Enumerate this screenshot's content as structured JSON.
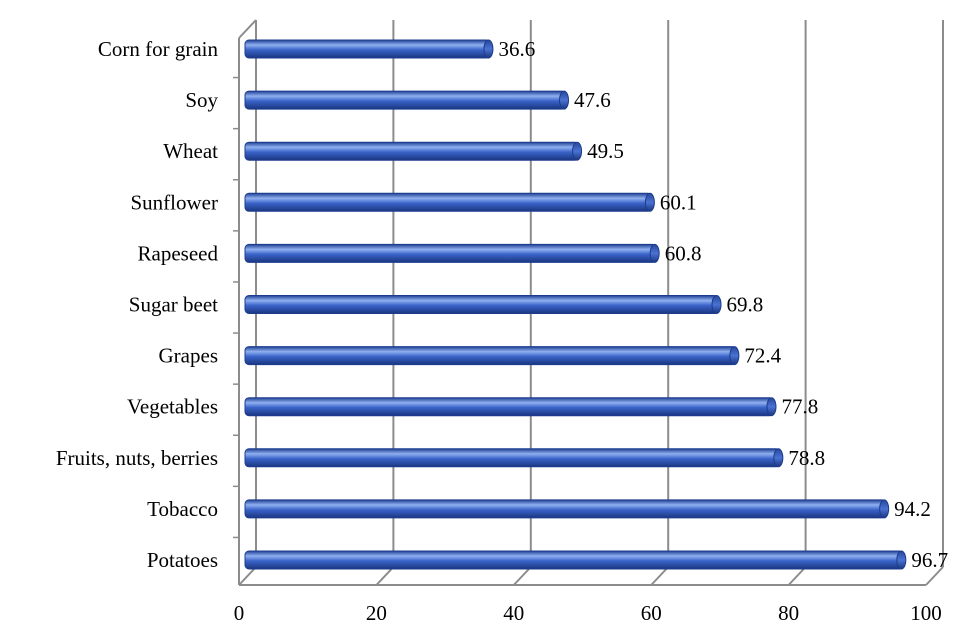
{
  "chart_data": {
    "type": "bar",
    "orientation": "horizontal",
    "categories": [
      "Corn for grain",
      "Soy",
      "Wheat",
      "Sunflower",
      "Rapeseed",
      "Sugar beet",
      "Grapes",
      "Vegetables",
      "Fruits, nuts, berries",
      "Tobacco",
      "Potatoes"
    ],
    "values": [
      36.6,
      47.6,
      49.5,
      60.1,
      60.8,
      69.8,
      72.4,
      77.8,
      78.8,
      94.2,
      96.7
    ],
    "data_labels": [
      "36.6",
      "47.6",
      "49.5",
      "60.1",
      "60.8",
      "69.8",
      "72.4",
      "77.8",
      "78.8",
      "94.2",
      "96.7"
    ],
    "xticks": [
      0,
      20,
      40,
      60,
      80,
      100
    ],
    "xtick_labels": [
      "0",
      "20",
      "40",
      "60",
      "80",
      "100"
    ],
    "xlim": [
      0,
      100
    ],
    "title": "",
    "xlabel": "",
    "ylabel": "",
    "grid": "vertical",
    "legend": "none",
    "bar_color": "#3a63c9",
    "bar_color_dark": "#1d3c8e",
    "bar_color_light": "#8fb0f0",
    "grid_color": "#8c8c8c"
  }
}
